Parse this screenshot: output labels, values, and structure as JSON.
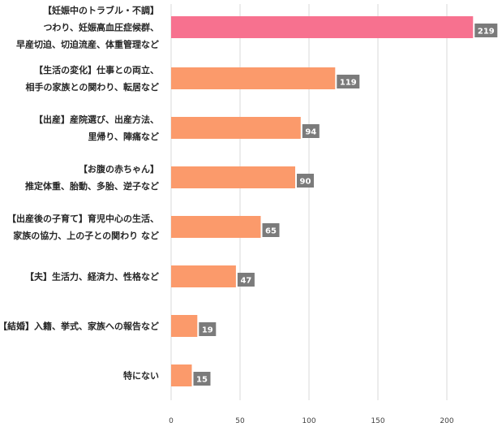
{
  "chart_data": {
    "type": "bar",
    "orientation": "horizontal",
    "categories": [
      [
        "【妊娠中のトラブル・不調】",
        "つわり、妊娠高血圧症候群、",
        "早産切迫、切迫流産、体重管理など"
      ],
      [
        "【生活の変化】仕事との両立、",
        "相手の家族との関わり、転居など"
      ],
      [
        "【出産】産院選び、出産方法、",
        "里帰り、陣痛など"
      ],
      [
        "【お腹の赤ちゃん】",
        "推定体重、胎動、多胎、逆子など"
      ],
      [
        "【出産後の子育て】育児中心の生活、",
        "家族の協力、上の子との関わり など"
      ],
      [
        "【夫】生活力、経済力、性格など"
      ],
      [
        "【結婚】入籍、挙式、家族への報告など"
      ],
      [
        "特にない"
      ]
    ],
    "values": [
      219,
      119,
      94,
      90,
      65,
      47,
      19,
      15
    ],
    "value_labels": [
      "219",
      "119",
      "94",
      "90",
      "65",
      "47",
      "19",
      "15"
    ],
    "xlim": [
      0,
      240
    ],
    "xticks": [
      "0",
      "50",
      "100",
      "150",
      "200"
    ],
    "grid": true,
    "colors": {
      "highlight": "#f7718f",
      "bar": "#fb9a6b",
      "label_box": "#7b7b7b",
      "grid": "#d9d9d9"
    }
  }
}
